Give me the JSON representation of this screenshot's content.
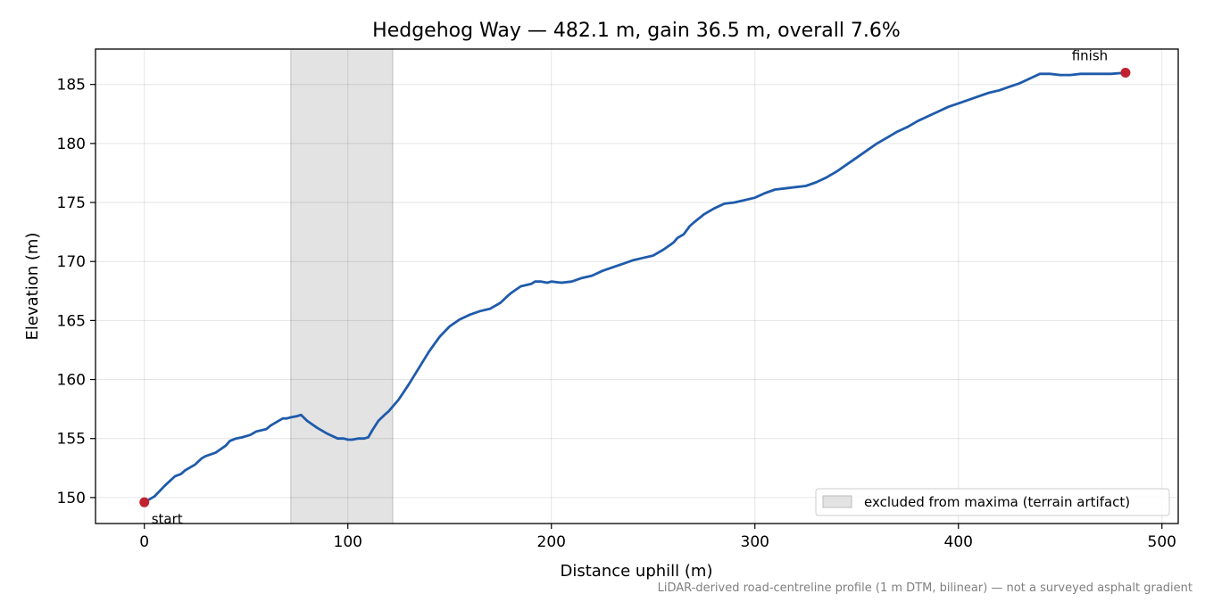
{
  "chart_data": {
    "type": "line",
    "title": "Hedgehog Way — 482.1 m, gain 36.5 m, overall 7.6%",
    "xlabel": "Distance uphill (m)",
    "ylabel": "Elevation (m)",
    "xlim": [
      -24,
      508
    ],
    "ylim": [
      147.8,
      188.0
    ],
    "xticks": [
      0,
      100,
      200,
      300,
      400,
      500
    ],
    "yticks": [
      150,
      155,
      160,
      165,
      170,
      175,
      180,
      185
    ],
    "grid": true,
    "line_color": "#1f5bab",
    "marker_color": "#c0212f",
    "shade_color": "#d9d9d9",
    "shaded_region": {
      "x_start": 72,
      "x_end": 122,
      "label": "excluded from maxima (terrain artifact)"
    },
    "legend": {
      "position": "bottom-right",
      "entries": [
        "excluded from maxima (terrain artifact)"
      ]
    },
    "annotations": [
      {
        "text": "start",
        "x": 0,
        "y": 149.6
      },
      {
        "text": "finish",
        "x": 482.1,
        "y": 186.0
      }
    ],
    "series": [
      {
        "x": [
          0,
          5,
          10,
          15,
          18,
          20,
          25,
          28,
          30,
          35,
          40,
          42,
          45,
          48,
          52,
          55,
          60,
          62,
          65,
          68,
          70,
          72,
          75,
          77,
          80,
          85,
          90,
          95,
          98,
          100,
          102,
          105,
          108,
          110,
          112,
          115,
          118,
          120,
          125,
          130,
          135,
          140,
          145,
          150,
          155,
          160,
          165,
          170,
          175,
          178,
          180,
          185,
          190,
          192,
          195,
          198,
          200,
          205,
          210,
          215,
          220,
          225,
          230,
          235,
          240,
          245,
          250,
          255,
          260,
          262,
          265,
          268,
          270,
          275,
          280,
          285,
          290,
          295,
          300,
          305,
          310,
          315,
          320,
          325,
          330,
          335,
          340,
          345,
          350,
          355,
          360,
          365,
          370,
          375,
          380,
          385,
          390,
          395,
          400,
          405,
          410,
          415,
          420,
          425,
          430,
          435,
          440,
          445,
          450,
          455,
          460,
          465,
          470,
          475,
          482.1
        ],
        "y": [
          149.6,
          150.1,
          151.0,
          151.8,
          152.0,
          152.3,
          152.8,
          153.3,
          153.5,
          153.8,
          154.4,
          154.8,
          155.0,
          155.1,
          155.3,
          155.6,
          155.8,
          156.1,
          156.4,
          156.7,
          156.7,
          156.8,
          156.9,
          157.0,
          156.5,
          155.9,
          155.4,
          155.0,
          155.0,
          154.9,
          154.9,
          155.0,
          155.0,
          155.1,
          155.7,
          156.5,
          157.0,
          157.3,
          158.3,
          159.6,
          161.0,
          162.4,
          163.6,
          164.5,
          165.1,
          165.5,
          165.8,
          166.0,
          166.5,
          167.0,
          167.3,
          167.9,
          168.1,
          168.3,
          168.3,
          168.2,
          168.3,
          168.2,
          168.3,
          168.6,
          168.8,
          169.2,
          169.5,
          169.8,
          170.1,
          170.3,
          170.5,
          171.0,
          171.6,
          172.0,
          172.3,
          173.0,
          173.3,
          174.0,
          174.5,
          174.9,
          175.0,
          175.2,
          175.4,
          175.8,
          176.1,
          176.2,
          176.3,
          176.4,
          176.7,
          177.1,
          177.6,
          178.2,
          178.8,
          179.4,
          180.0,
          180.5,
          181.0,
          181.4,
          181.9,
          182.3,
          182.7,
          183.1,
          183.4,
          183.7,
          184.0,
          184.3,
          184.5,
          184.8,
          185.1,
          185.5,
          185.9,
          185.9,
          185.8,
          185.8,
          185.9,
          185.9,
          185.9,
          185.9,
          186.0
        ]
      }
    ]
  },
  "footnote": "LiDAR-derived road-centreline profile (1 m DTM, bilinear) — not a surveyed asphalt gradient"
}
